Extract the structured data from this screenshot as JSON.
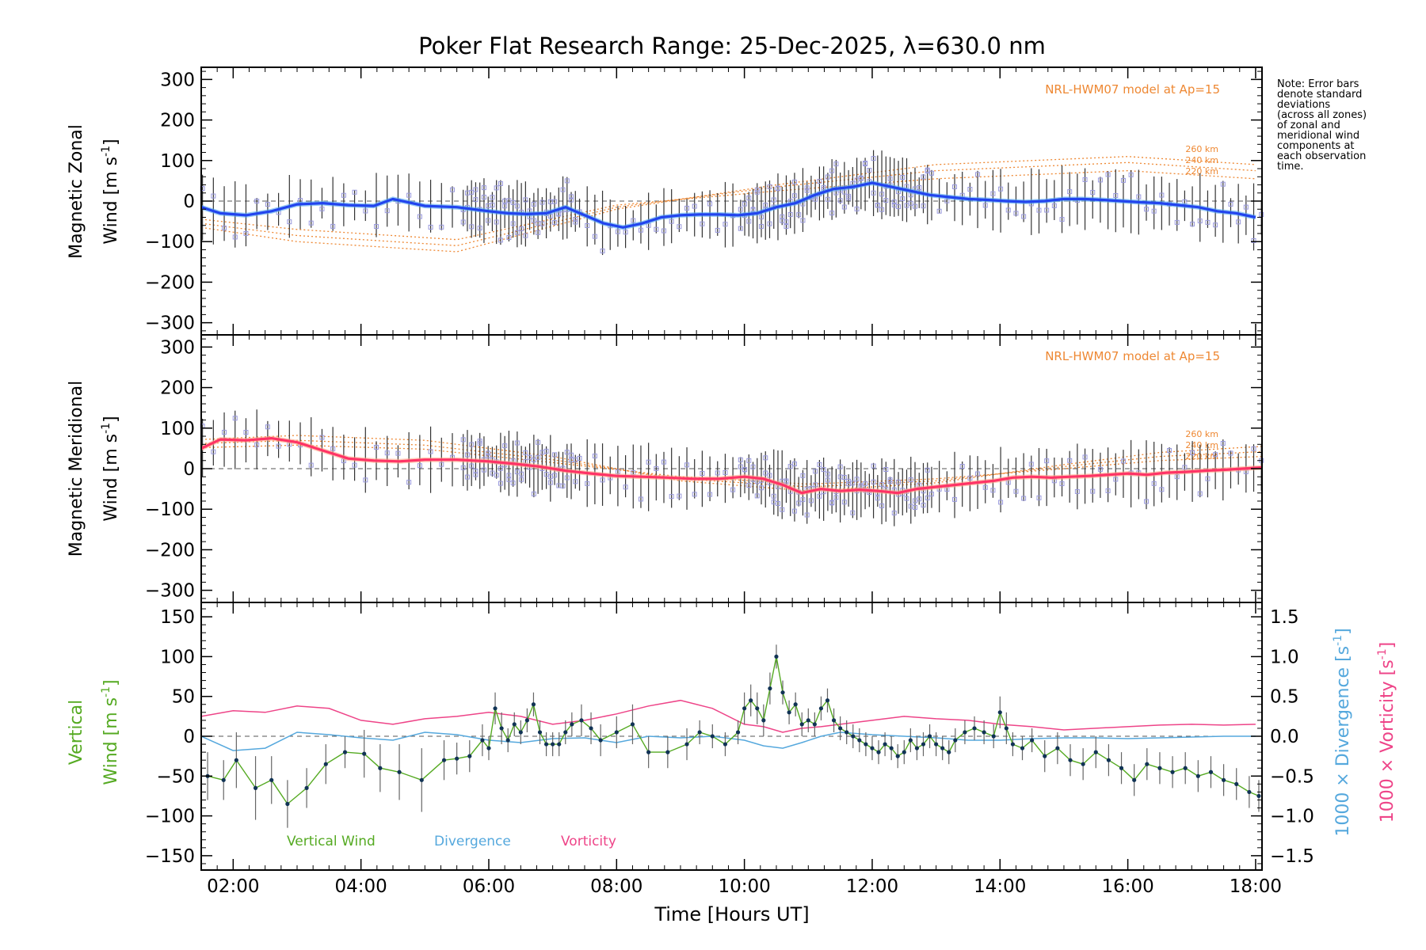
{
  "figure": {
    "title": "Poker Flat Research Range: 25-Dec-2025, λ=630.0 nm",
    "xlabel": "Time [Hours UT]",
    "note": [
      "Note: Error bars",
      "denote standard",
      "deviations",
      "(across all zones)",
      "of zonal and",
      "meridional wind",
      "components at",
      "each observation",
      "time."
    ],
    "colors": {
      "zonal": "#2244ee",
      "zonal_light": "#55aaee",
      "meridional": "#ff3366",
      "model": "#ee8833",
      "samples": "#9999dd",
      "errorbar": "#333333",
      "vertical": "#55aa22",
      "divergence": "#55a8dd",
      "vorticity": "#ee4488",
      "dot": "#113355"
    }
  },
  "chart_data": [
    {
      "type": "line",
      "panel": "zonal",
      "ylabel_line1": "Magnetic Zonal",
      "ylabel_line2": "Wind [m s",
      "ylabel_sup": "-1",
      "ylabel_close": "]",
      "ylim": [
        -330,
        330
      ],
      "yticks": [
        -300,
        -200,
        -100,
        0,
        100,
        200,
        300
      ],
      "xlim": [
        1.5,
        18.1
      ],
      "xticks": [
        2,
        4,
        6,
        8,
        10,
        12,
        14,
        16,
        18
      ],
      "xticklabels": [
        "02:00",
        "04:00",
        "06:00",
        "08:00",
        "10:00",
        "12:00",
        "14:00",
        "16:00",
        "18:00"
      ],
      "model_label": "NRL-HWM07 model at Ap=15",
      "model_heights": [
        "260 km",
        "240 km",
        "220 km"
      ],
      "wind": {
        "x": [
          1.5,
          1.8,
          2.2,
          2.6,
          3.0,
          3.4,
          3.8,
          4.2,
          4.5,
          5.0,
          5.5,
          6.0,
          6.3,
          6.6,
          6.9,
          7.2,
          7.5,
          7.8,
          8.1,
          8.4,
          8.7,
          9.0,
          9.3,
          9.6,
          9.9,
          10.2,
          10.5,
          10.8,
          11.1,
          11.4,
          11.7,
          12.0,
          12.3,
          12.6,
          12.9,
          13.2,
          13.5,
          13.8,
          14.1,
          14.4,
          14.7,
          15.0,
          15.3,
          15.6,
          15.9,
          16.2,
          16.5,
          16.8,
          17.1,
          17.4,
          17.7,
          18.0
        ],
        "y": [
          -15,
          -30,
          -35,
          -25,
          -8,
          -5,
          -10,
          -12,
          5,
          -12,
          -15,
          -25,
          -30,
          -32,
          -30,
          -15,
          -35,
          -55,
          -65,
          -55,
          -40,
          -35,
          -33,
          -33,
          -35,
          -30,
          -15,
          -5,
          15,
          30,
          35,
          45,
          35,
          25,
          15,
          10,
          5,
          3,
          0,
          -2,
          0,
          5,
          5,
          3,
          0,
          -3,
          -5,
          -10,
          -15,
          -25,
          -30,
          -40
        ]
      },
      "model": [
        {
          "x": [
            1.5,
            3.0,
            5.5,
            8.0,
            10.5,
            13.0,
            16.0,
            18.0
          ],
          "y": [
            -65,
            -100,
            -125,
            -20,
            40,
            90,
            110,
            90
          ]
        },
        {
          "x": [
            1.5,
            3.0,
            5.5,
            8.0,
            10.5,
            13.0,
            16.0,
            18.0
          ],
          "y": [
            -55,
            -85,
            -110,
            -15,
            35,
            75,
            95,
            75
          ]
        },
        {
          "x": [
            1.5,
            3.0,
            5.5,
            8.0,
            10.5,
            13.0,
            16.0,
            18.0
          ],
          "y": [
            -45,
            -70,
            -95,
            -10,
            25,
            55,
            75,
            55
          ]
        }
      ]
    },
    {
      "type": "line",
      "panel": "meridional",
      "ylabel_line1": "Magnetic Meridional",
      "ylabel_line2": "Wind [m s",
      "ylabel_sup": "-1",
      "ylabel_close": "]",
      "ylim": [
        -330,
        330
      ],
      "yticks": [
        -300,
        -200,
        -100,
        0,
        100,
        200,
        300
      ],
      "xlim": [
        1.5,
        18.1
      ],
      "model_label": "NRL-HWM07 model at Ap=15",
      "model_heights": [
        "260 km",
        "240 km",
        "220 km"
      ],
      "wind": {
        "x": [
          1.5,
          1.8,
          2.2,
          2.6,
          3.0,
          3.4,
          3.8,
          4.2,
          4.6,
          5.0,
          5.5,
          6.0,
          6.4,
          6.8,
          7.2,
          7.6,
          8.0,
          8.4,
          8.8,
          9.2,
          9.6,
          10.0,
          10.3,
          10.6,
          10.9,
          11.2,
          11.5,
          11.8,
          12.1,
          12.4,
          12.7,
          13.0,
          13.3,
          13.6,
          13.9,
          14.2,
          14.5,
          14.8,
          15.1,
          15.4,
          15.7,
          16.0,
          16.3,
          16.6,
          16.9,
          17.2,
          17.5,
          17.8,
          18.1
        ],
        "y": [
          50,
          72,
          70,
          75,
          65,
          45,
          25,
          20,
          18,
          22,
          22,
          18,
          12,
          5,
          -5,
          -12,
          -18,
          -20,
          -22,
          -25,
          -25,
          -20,
          -25,
          -40,
          -60,
          -50,
          -55,
          -52,
          -55,
          -60,
          -50,
          -45,
          -40,
          -35,
          -30,
          -22,
          -20,
          -22,
          -20,
          -18,
          -15,
          -12,
          -15,
          -10,
          -8,
          -5,
          -3,
          0,
          3
        ]
      },
      "model": [
        {
          "x": [
            1.5,
            3.0,
            5.0,
            7.0,
            9.0,
            11.0,
            13.0,
            15.0,
            16.5,
            18.1
          ],
          "y": [
            72,
            82,
            70,
            30,
            -30,
            -55,
            -35,
            10,
            40,
            55
          ]
        },
        {
          "x": [
            1.5,
            3.0,
            5.0,
            7.0,
            9.0,
            11.0,
            13.0,
            15.0,
            16.5,
            18.1
          ],
          "y": [
            62,
            70,
            58,
            22,
            -25,
            -45,
            -30,
            5,
            30,
            42
          ]
        },
        {
          "x": [
            1.5,
            3.0,
            5.0,
            7.0,
            9.0,
            11.0,
            13.0,
            15.0,
            16.5,
            18.1
          ],
          "y": [
            52,
            58,
            48,
            15,
            -20,
            -38,
            -25,
            0,
            20,
            30
          ]
        }
      ]
    },
    {
      "type": "line",
      "panel": "vertical",
      "ylabel_line1": "Vertical",
      "ylabel_line2": "Wind [m s",
      "ylabel_sup": "-1",
      "ylabel_close": "]",
      "ylim": [
        -168,
        168
      ],
      "yticks": [
        -150,
        -100,
        -50,
        0,
        50,
        100,
        150
      ],
      "y2lim": [
        -1.68,
        1.68
      ],
      "y2ticks": [
        -1.5,
        -1.0,
        -0.5,
        0.0,
        0.5,
        1.0,
        1.5
      ],
      "y2ticklabels": [
        "−1.5",
        "−1.0",
        "−0.5",
        "0.0",
        "0.5",
        "1.0",
        "1.5"
      ],
      "y2label_div": "1000 × Divergence [s",
      "y2label_vort": "1000 × Vorticity [s",
      "y2label_sup": "-1",
      "y2label_close": "]",
      "xlim": [
        1.5,
        18.1
      ],
      "xticks": [
        2,
        4,
        6,
        8,
        10,
        12,
        14,
        16,
        18
      ],
      "xticklabels": [
        "02:00",
        "04:00",
        "06:00",
        "08:00",
        "10:00",
        "12:00",
        "14:00",
        "16:00",
        "18:00"
      ],
      "legend": [
        "Vertical Wind",
        "Divergence",
        "Vorticity"
      ],
      "vertical_wind": {
        "x": [
          1.6,
          1.85,
          2.05,
          2.35,
          2.6,
          2.85,
          3.15,
          3.45,
          3.75,
          4.05,
          4.3,
          4.6,
          4.95,
          5.3,
          5.5,
          5.7,
          5.9,
          6.0,
          6.1,
          6.2,
          6.3,
          6.4,
          6.5,
          6.6,
          6.7,
          6.8,
          6.9,
          7.0,
          7.1,
          7.2,
          7.3,
          7.45,
          7.6,
          7.75,
          8.0,
          8.25,
          8.5,
          8.8,
          9.1,
          9.3,
          9.5,
          9.7,
          9.9,
          10.0,
          10.1,
          10.2,
          10.3,
          10.4,
          10.5,
          10.6,
          10.7,
          10.8,
          10.9,
          11.0,
          11.1,
          11.2,
          11.3,
          11.4,
          11.5,
          11.6,
          11.7,
          11.8,
          11.9,
          12.0,
          12.1,
          12.2,
          12.3,
          12.4,
          12.5,
          12.6,
          12.7,
          12.8,
          12.9,
          13.0,
          13.1,
          13.2,
          13.3,
          13.45,
          13.6,
          13.75,
          13.9,
          14.0,
          14.1,
          14.2,
          14.35,
          14.5,
          14.7,
          14.9,
          15.1,
          15.3,
          15.5,
          15.7,
          15.9,
          16.1,
          16.3,
          16.5,
          16.7,
          16.9,
          17.1,
          17.3,
          17.5,
          17.7,
          17.9,
          18.05
        ],
        "y": [
          -50,
          -55,
          -30,
          -65,
          -55,
          -85,
          -65,
          -35,
          -20,
          -22,
          -40,
          -45,
          -55,
          -30,
          -28,
          -25,
          -5,
          -15,
          35,
          10,
          -5,
          15,
          5,
          20,
          40,
          5,
          -10,
          -10,
          -10,
          5,
          15,
          20,
          10,
          -5,
          5,
          15,
          -20,
          -20,
          -10,
          5,
          0,
          -10,
          5,
          35,
          45,
          35,
          20,
          60,
          100,
          55,
          30,
          40,
          15,
          20,
          15,
          35,
          45,
          20,
          10,
          5,
          0,
          -5,
          -10,
          -15,
          -20,
          -10,
          -15,
          -25,
          -20,
          -5,
          -15,
          -10,
          0,
          -10,
          -15,
          -20,
          -5,
          5,
          10,
          5,
          0,
          30,
          10,
          -10,
          -15,
          -5,
          -25,
          -15,
          -30,
          -35,
          -20,
          -30,
          -40,
          -55,
          -35,
          -40,
          -45,
          -40,
          -50,
          -45,
          -55,
          -60,
          -70,
          -75
        ],
        "err": [
          30,
          25,
          35,
          40,
          30,
          30,
          25,
          25,
          20,
          30,
          30,
          35,
          40,
          25,
          20,
          20,
          20,
          15,
          20,
          20,
          15,
          15,
          15,
          15,
          15,
          15,
          15,
          15,
          15,
          15,
          15,
          20,
          20,
          20,
          20,
          25,
          20,
          20,
          20,
          15,
          15,
          15,
          15,
          20,
          20,
          20,
          20,
          20,
          15,
          15,
          15,
          15,
          15,
          15,
          15,
          15,
          15,
          15,
          15,
          15,
          15,
          15,
          15,
          15,
          15,
          15,
          15,
          15,
          15,
          15,
          15,
          15,
          15,
          15,
          15,
          15,
          15,
          15,
          15,
          15,
          15,
          20,
          20,
          15,
          15,
          15,
          20,
          20,
          20,
          20,
          20,
          20,
          20,
          20,
          20,
          20,
          20,
          20,
          20,
          20,
          20,
          20,
          20,
          20
        ]
      },
      "divergence": {
        "x": [
          1.5,
          2.0,
          2.5,
          3.0,
          3.5,
          4.0,
          4.5,
          5.0,
          5.5,
          6.0,
          6.5,
          7.0,
          7.5,
          8.0,
          8.5,
          9.0,
          9.5,
          10.0,
          10.3,
          10.6,
          10.9,
          11.2,
          11.5,
          12.0,
          12.5,
          13.0,
          13.5,
          14.0,
          14.5,
          15.0,
          15.5,
          16.0,
          16.5,
          17.0,
          17.5,
          18.0
        ],
        "y": [
          0.0,
          -0.18,
          -0.15,
          0.05,
          0.02,
          -0.02,
          -0.05,
          0.05,
          0.02,
          -0.05,
          -0.08,
          -0.03,
          -0.02,
          -0.08,
          0.0,
          -0.02,
          0.0,
          -0.05,
          -0.12,
          -0.15,
          -0.08,
          0.0,
          0.05,
          0.02,
          0.0,
          -0.02,
          -0.05,
          -0.05,
          -0.03,
          -0.02,
          -0.02,
          -0.03,
          -0.02,
          -0.01,
          0.0,
          0.0
        ]
      },
      "vorticity": {
        "x": [
          1.5,
          2.0,
          2.5,
          3.0,
          3.5,
          4.0,
          4.5,
          5.0,
          5.5,
          6.0,
          6.5,
          7.0,
          7.5,
          8.0,
          8.5,
          9.0,
          9.5,
          10.0,
          10.3,
          10.6,
          10.9,
          11.2,
          11.5,
          12.0,
          12.5,
          13.0,
          13.5,
          14.0,
          14.5,
          15.0,
          15.5,
          16.0,
          16.5,
          17.0,
          17.5,
          18.0
        ],
        "y": [
          0.25,
          0.32,
          0.3,
          0.38,
          0.35,
          0.2,
          0.15,
          0.22,
          0.25,
          0.3,
          0.25,
          0.15,
          0.2,
          0.28,
          0.38,
          0.45,
          0.35,
          0.15,
          0.12,
          0.05,
          0.1,
          0.12,
          0.15,
          0.2,
          0.25,
          0.22,
          0.2,
          0.15,
          0.12,
          0.08,
          0.1,
          0.12,
          0.14,
          0.15,
          0.14,
          0.15
        ]
      }
    }
  ]
}
